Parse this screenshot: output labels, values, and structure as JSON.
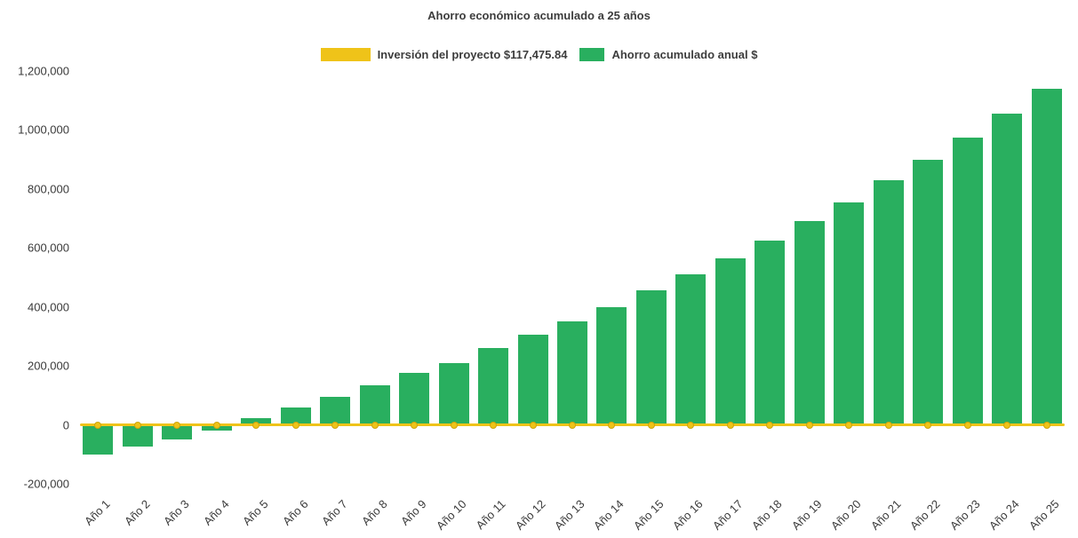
{
  "title": "Ahorro económico acumulado a 25 años",
  "legend": [
    {
      "label": "Inversión del proyecto $117,475.84",
      "color": "#EFC319",
      "type": "line"
    },
    {
      "label": "Ahorro acumulado anual $",
      "color": "#29AF5F",
      "type": "bar"
    }
  ],
  "chart_data": {
    "type": "bar",
    "title": "Ahorro económico acumulado a 25 años",
    "categories": [
      "Año 1",
      "Año 2",
      "Año 3",
      "Año 4",
      "Año 5",
      "Año 6",
      "Año 7",
      "Año 8",
      "Año 9",
      "Año 10",
      "Año 11",
      "Año 12",
      "Año 13",
      "Año 14",
      "Año 15",
      "Año 16",
      "Año 17",
      "Año 18",
      "Año 19",
      "Año 20",
      "Año 21",
      "Año 22",
      "Año 23",
      "Año 24",
      "Año 25"
    ],
    "series": [
      {
        "name": "Ahorro acumulado anual $",
        "type": "bar",
        "color": "#29AF5F",
        "values": [
          -100000,
          -75000,
          -48000,
          -18000,
          22000,
          60000,
          95000,
          135000,
          175000,
          210000,
          260000,
          305000,
          350000,
          400000,
          455000,
          510000,
          565000,
          625000,
          690000,
          755000,
          830000,
          900000,
          975000,
          1055000,
          1140000
        ]
      },
      {
        "name": "Inversión del proyecto $117,475.84",
        "type": "line",
        "color": "#EFC319",
        "values": [
          0,
          0,
          0,
          0,
          0,
          0,
          0,
          0,
          0,
          0,
          0,
          0,
          0,
          0,
          0,
          0,
          0,
          0,
          0,
          0,
          0,
          0,
          0,
          0,
          0
        ]
      }
    ],
    "ylim": [
      -200000,
      1200000
    ],
    "yticks": [
      1200000,
      1000000,
      800000,
      600000,
      400000,
      200000,
      0,
      -200000
    ],
    "ytick_labels": [
      "1,200,000",
      "1,000,000",
      "800,000",
      "600,000",
      "400,000",
      "200,000",
      "0",
      "-200,000"
    ],
    "grid": false,
    "legend_position": "top"
  }
}
